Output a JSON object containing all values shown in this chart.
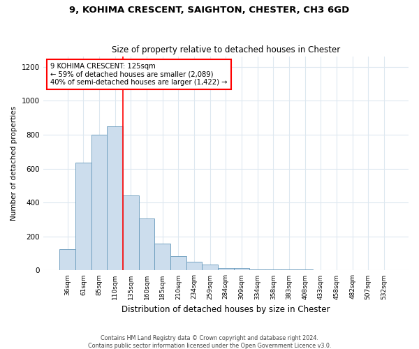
{
  "title1": "9, KOHIMA CRESCENT, SAIGHTON, CHESTER, CH3 6GD",
  "title2": "Size of property relative to detached houses in Chester",
  "xlabel": "Distribution of detached houses by size in Chester",
  "ylabel": "Number of detached properties",
  "footnote": "Contains HM Land Registry data © Crown copyright and database right 2024.\nContains public sector information licensed under the Open Government Licence v3.0.",
  "categories": [
    "36sqm",
    "61sqm",
    "85sqm",
    "110sqm",
    "135sqm",
    "160sqm",
    "185sqm",
    "210sqm",
    "234sqm",
    "259sqm",
    "284sqm",
    "309sqm",
    "334sqm",
    "358sqm",
    "383sqm",
    "408sqm",
    "433sqm",
    "458sqm",
    "482sqm",
    "507sqm",
    "532sqm"
  ],
  "values": [
    125,
    635,
    800,
    850,
    440,
    305,
    160,
    85,
    50,
    35,
    15,
    15,
    5,
    5,
    5,
    5,
    0,
    0,
    0,
    0,
    0
  ],
  "bar_color": "#ccdded",
  "bar_edge_color": "#6699bb",
  "vline_x": 3.5,
  "vline_color": "red",
  "annotation_text": "9 KOHIMA CRESCENT: 125sqm\n← 59% of detached houses are smaller (2,089)\n40% of semi-detached houses are larger (1,422) →",
  "annotation_box_color": "white",
  "annotation_box_edge_color": "red",
  "ylim": [
    0,
    1260
  ],
  "yticks": [
    0,
    200,
    400,
    600,
    800,
    1000,
    1200
  ],
  "background_color": "#ffffff",
  "grid_color": "#dde8f0"
}
